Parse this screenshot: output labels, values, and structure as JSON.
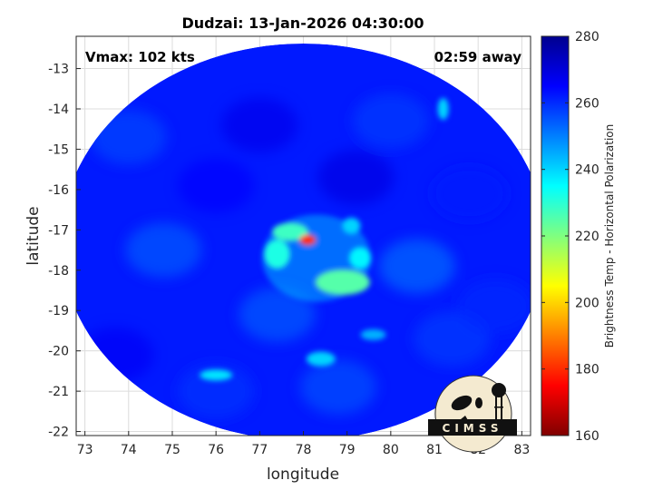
{
  "chart_data": {
    "type": "heatmap",
    "title": "Dudzai: 13-Jan-2026 04:30:00",
    "xlabel": "longitude",
    "ylabel": "latitude",
    "xlim": [
      72.8,
      83.2
    ],
    "ylim": [
      -22.1,
      -12.2
    ],
    "xticks": [
      73,
      74,
      75,
      76,
      77,
      78,
      79,
      80,
      81,
      82,
      83
    ],
    "yticks": [
      -13,
      -14,
      -15,
      -16,
      -17,
      -18,
      -19,
      -20,
      -21,
      -22
    ],
    "grid": true,
    "annotations": {
      "vmax": "Vmax: 102 kts",
      "time_away": "02:59 away"
    },
    "colorbar": {
      "label": "Brightness Temp - Horizontal Polarization",
      "min": 160,
      "max": 280,
      "ticks": [
        160,
        180,
        200,
        220,
        240,
        260,
        280
      ],
      "colormap": "jet"
    },
    "swath": {
      "center": [
        78.0,
        -17.3
      ],
      "radius_lon": 5.55,
      "radius_lat": 4.92,
      "background_temp": 262
    },
    "features": [
      {
        "name": "eye-core",
        "lon": 78.1,
        "lat": -17.25,
        "temp": 180
      },
      {
        "name": "eyewall-north",
        "lon": 77.7,
        "lat": -17.05,
        "temp": 228
      },
      {
        "name": "eyewall-west",
        "lon": 77.4,
        "lat": -17.6,
        "temp": 232
      },
      {
        "name": "southern-rainband",
        "lon": 78.9,
        "lat": -18.3,
        "temp": 225
      },
      {
        "name": "eastern-band",
        "lon": 79.3,
        "lat": -17.7,
        "temp": 236
      },
      {
        "name": "northeast-band",
        "lon": 79.1,
        "lat": -16.9,
        "temp": 240
      },
      {
        "name": "band-sw",
        "lon": 76.0,
        "lat": -20.6,
        "temp": 238
      },
      {
        "name": "band-s",
        "lon": 78.4,
        "lat": -20.2,
        "temp": 240
      },
      {
        "name": "band-se",
        "lon": 79.6,
        "lat": -19.6,
        "temp": 244
      },
      {
        "name": "band-east-edge",
        "lon": 81.2,
        "lat": -14.0,
        "temp": 240
      }
    ]
  },
  "logo": {
    "text": "CIMSS",
    "fill": "#f4ead0"
  }
}
